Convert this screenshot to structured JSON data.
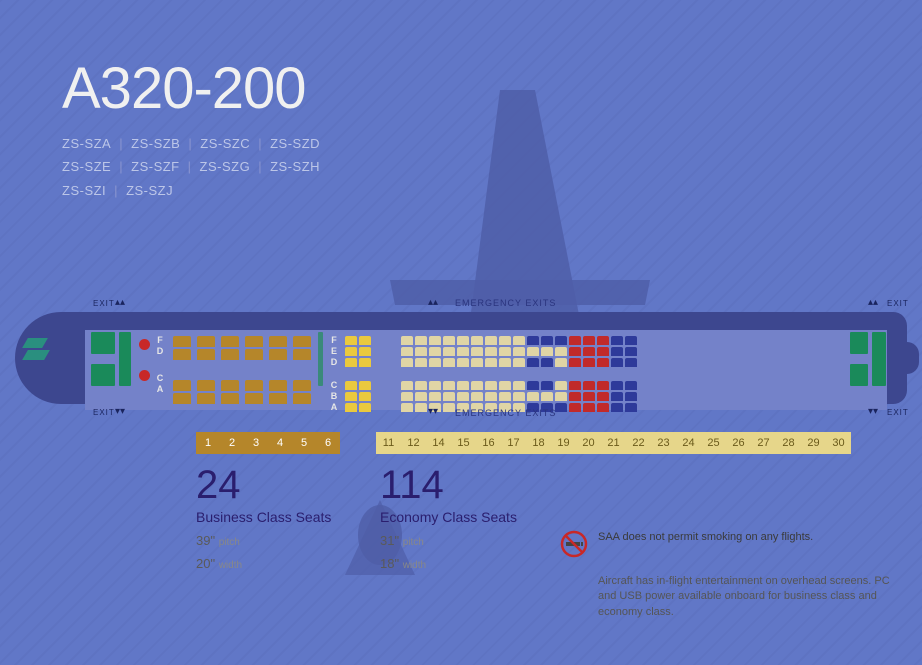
{
  "aircraft_model": "A320-200",
  "registrations": [
    "ZS-SZA",
    "ZS-SZB",
    "ZS-SZC",
    "ZS-SZD",
    "ZS-SZE",
    "ZS-SZF",
    "ZS-SZG",
    "ZS-SZH",
    "ZS-SZI",
    "ZS-SZJ"
  ],
  "labels": {
    "exit": "EXIT",
    "emergency_exits": "EMERGENCY EXITS"
  },
  "row_letters_business": [
    "F",
    "D",
    "",
    "C",
    "A"
  ],
  "row_letters_economy": [
    "F",
    "E",
    "D",
    "",
    "C",
    "B",
    "A"
  ],
  "row_numbers_business": [
    1,
    2,
    3,
    4,
    5,
    6
  ],
  "row_numbers_economy": [
    11,
    12,
    14,
    15,
    16,
    17,
    18,
    19,
    20,
    21,
    22,
    23,
    24,
    25,
    26,
    27,
    28,
    29,
    30
  ],
  "colors": {
    "background": "#6177c7",
    "fuselage": "#3d478f",
    "cabin": "#7482c9",
    "galley": "#1a8a5a",
    "seat_business": "#b5862a",
    "seat_eco_yellow": "#eac93e",
    "seat_eco_beige": "#e0d5a5",
    "seat_blue": "#2e3a9a",
    "seat_red": "#c12a2a",
    "strip_biz": "#b5862a",
    "strip_eco": "#e6d68a",
    "accent_text": "#2a1e6e"
  },
  "business": {
    "count": "24",
    "label": "Business Class Seats",
    "pitch": "39\"",
    "pitch_unit": "pitch",
    "width_val": "20\"",
    "width_unit": "width"
  },
  "economy": {
    "count": "114",
    "label": "Economy Class Seats",
    "pitch": "31\"",
    "pitch_unit": "pitch",
    "width_val": "18\"",
    "width_unit": "width"
  },
  "no_smoking_text": "SAA does not permit smoking on any flights.",
  "entertainment_text": "Aircraft has in-flight entertainment on overhead screens. PC and USB power available onboard for business class and economy class.",
  "seat_layout": {
    "business_rows": 6,
    "business_config": "2-2",
    "economy_rows": 19,
    "economy_config": "3-3",
    "economy_colors": {
      "rows_11_12": "yellow",
      "rows_14_24_mix": "beige",
      "rows_22_24_aisle_window": "blue",
      "rows_26_28": "red",
      "rows_29_30": "blue"
    }
  }
}
